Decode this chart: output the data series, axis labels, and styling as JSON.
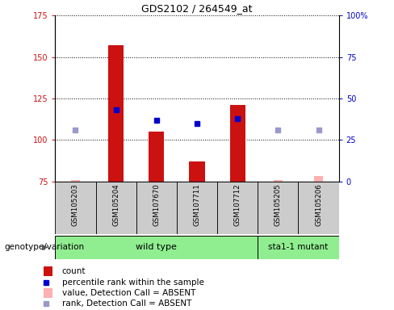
{
  "title": "GDS2102 / 264549_at",
  "sample_labels": [
    "GSM105203",
    "GSM105204",
    "GSM107670",
    "GSM107711",
    "GSM107712",
    "GSM105205",
    "GSM105206"
  ],
  "count_values": [
    null,
    157,
    105,
    87,
    121,
    null,
    null
  ],
  "count_absent_values": [
    76,
    null,
    null,
    null,
    null,
    76,
    78
  ],
  "percentile_rank": [
    null,
    118,
    112,
    110,
    113,
    null,
    null
  ],
  "rank_absent": [
    106,
    null,
    null,
    null,
    null,
    106,
    106
  ],
  "ylim_left": [
    75,
    175
  ],
  "ylim_right": [
    0,
    100
  ],
  "yticks_left": [
    75,
    100,
    125,
    150,
    175
  ],
  "yticks_right": [
    0,
    25,
    50,
    75,
    100
  ],
  "ytick_labels_right": [
    "0",
    "25",
    "50",
    "75",
    "100%"
  ],
  "bar_color_present": "#cc1111",
  "bar_color_absent": "#ffb0b0",
  "dot_color_present": "#0000cc",
  "dot_color_absent": "#9999cc",
  "plot_bg": "#ffffff",
  "base_value": 75,
  "bar_width": 0.38,
  "absent_bar_width": 0.22,
  "dot_size": 5,
  "wildtype_samples": 5,
  "wildtype_label": "wild type",
  "mutant_label": "sta1-1 mutant",
  "genotype_label": "genotype/variation",
  "legend_items": [
    {
      "color": "#cc1111",
      "type": "rect",
      "label": "count"
    },
    {
      "color": "#0000cc",
      "type": "square",
      "label": "percentile rank within the sample"
    },
    {
      "color": "#ffb0b0",
      "type": "rect",
      "label": "value, Detection Call = ABSENT"
    },
    {
      "color": "#9999cc",
      "type": "square",
      "label": "rank, Detection Call = ABSENT"
    }
  ],
  "green_light": "#90ee90",
  "gray_box": "#cccccc",
  "title_fontsize": 9,
  "tick_fontsize": 7,
  "label_fontsize": 7.5,
  "legend_fontsize": 7.5
}
